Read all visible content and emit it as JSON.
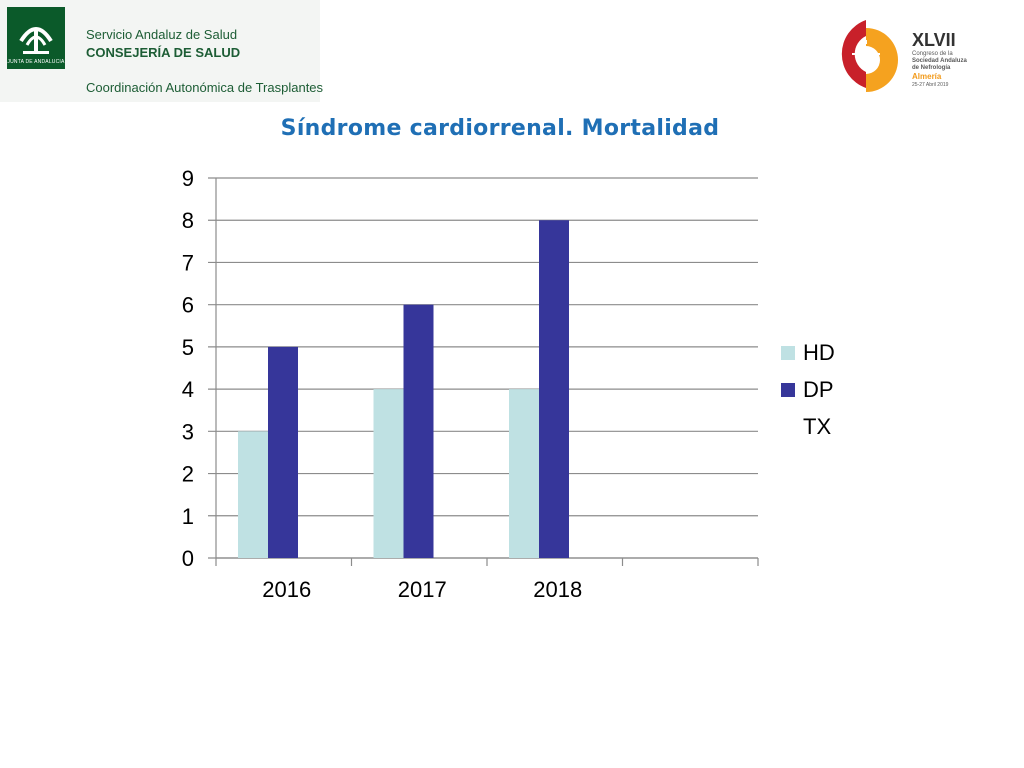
{
  "header": {
    "junta_label": "JUNTA DE ANDALUCIA",
    "sas_line1": "Servicio Andaluz de Salud",
    "sas_line2": "CONSEJERÍA DE SALUD",
    "sas_line3": "Coordinación Autonómica de Trasplantes",
    "congress_roman": "XLVII",
    "congress_line1": "Congreso de la",
    "congress_line2": "Sociedad Andaluza",
    "congress_line3": "de Nefrología",
    "congress_city": "Almería",
    "congress_dates": "25-27 Abril 2019"
  },
  "colors": {
    "hd": "#bfe1e3",
    "dp": "#36369a",
    "tx": "#ffffff",
    "title": "#1f6fb5",
    "grid": "#8c8c8c"
  },
  "chart_data": {
    "type": "bar",
    "title": "Síndrome cardiorrenal. Mortalidad",
    "categories": [
      "2016",
      "2017",
      "2018",
      ""
    ],
    "series": [
      {
        "name": "HD",
        "values": [
          3,
          4,
          4,
          null
        ]
      },
      {
        "name": "DP",
        "values": [
          5,
          6,
          8,
          null
        ]
      },
      {
        "name": "TX",
        "values": [
          null,
          null,
          null,
          null
        ]
      }
    ],
    "yticks": [
      "0",
      "1",
      "2",
      "3",
      "4",
      "5",
      "6",
      "7",
      "8",
      "9"
    ],
    "ylim": [
      0,
      9
    ],
    "xlabel": "",
    "ylabel": "",
    "grid": true,
    "legend_position": "right"
  }
}
